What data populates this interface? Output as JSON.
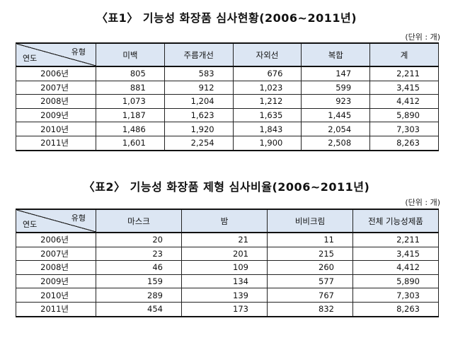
{
  "table1": {
    "title": "〈표1〉 기능성 화장품 심사현황(2006~2011년)",
    "unit": "(단위 : 개)",
    "corner_type": "유형",
    "corner_year": "연도",
    "columns": [
      "미백",
      "주름개선",
      "자외선",
      "복합",
      "계"
    ],
    "rows": [
      [
        "2006년",
        "805",
        "583",
        "676",
        "147",
        "2,211"
      ],
      [
        "2007년",
        "881",
        "912",
        "1,023",
        "599",
        "3,415"
      ],
      [
        "2008년",
        "1,073",
        "1,204",
        "1,212",
        "923",
        "4,412"
      ],
      [
        "2009년",
        "1,187",
        "1,623",
        "1,635",
        "1,445",
        "5,890"
      ],
      [
        "2010년",
        "1,486",
        "1,920",
        "1,843",
        "2,054",
        "7,303"
      ],
      [
        "2011년",
        "1,601",
        "2,254",
        "1,900",
        "2,508",
        "8,263"
      ]
    ]
  },
  "table2": {
    "title": "〈표2〉 기능성 화장품 제형 심사비율(2006~2011년)",
    "unit": "(단위 : 개)",
    "corner_type": "유형",
    "corner_year": "연도",
    "columns": [
      "마스크",
      "밤",
      "비비크림",
      "전체 기능성제품"
    ],
    "rows": [
      [
        "2006년",
        "20",
        "21",
        "11",
        "2,211"
      ],
      [
        "2007년",
        "23",
        "201",
        "215",
        "3,415"
      ],
      [
        "2008년",
        "46",
        "109",
        "260",
        "4,412"
      ],
      [
        "2009년",
        "159",
        "134",
        "577",
        "5,890"
      ],
      [
        "2010년",
        "289",
        "139",
        "767",
        "7,303"
      ],
      [
        "2011년",
        "454",
        "173",
        "832",
        "8,263"
      ]
    ]
  }
}
